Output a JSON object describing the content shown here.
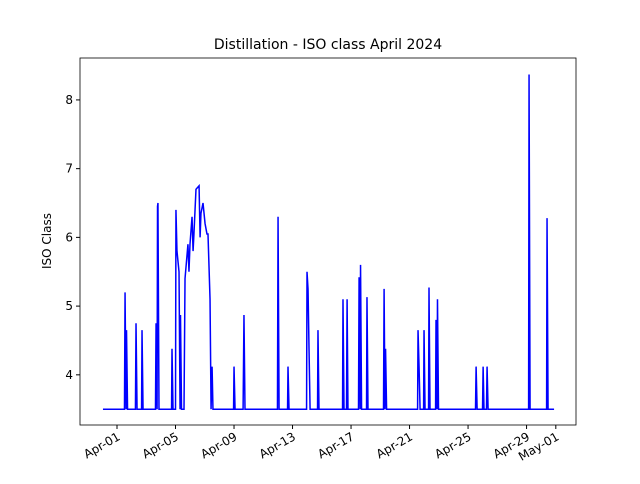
{
  "chart_data": {
    "type": "line",
    "title": "Distillation - ISO class April 2024",
    "y_label": "ISO Class",
    "x": [
      -0.96,
      0.51,
      0.55,
      0.62,
      0.65,
      0.72,
      1.26,
      1.3,
      1.37,
      1.68,
      1.71,
      1.78,
      2.63,
      2.67,
      2.74,
      2.77,
      2.8,
      2.87,
      3.73,
      3.76,
      3.83,
      4.0,
      4.03,
      4.1,
      4.24,
      4.31,
      4.34,
      4.41,
      4.58,
      4.65,
      4.85,
      4.92,
      4.99,
      5.13,
      5.2,
      5.26,
      5.4,
      5.61,
      5.68,
      5.74,
      5.88,
      6.02,
      6.15,
      6.22,
      6.36,
      6.43,
      6.5,
      6.56,
      7.97,
      8.0,
      8.07,
      8.62,
      8.68,
      8.75,
      10.97,
      11.01,
      11.08,
      11.66,
      11.69,
      11.76,
      12.96,
      12.99,
      13.06,
      13.13,
      13.2,
      13.71,
      13.74,
      13.81,
      15.42,
      15.45,
      15.52,
      15.69,
      15.73,
      15.79,
      16.51,
      16.55,
      16.62,
      16.65,
      16.72,
      17.06,
      17.09,
      17.16,
      18.22,
      18.26,
      18.32,
      18.36,
      18.43,
      20.55,
      20.58,
      20.65,
      20.72,
      20.96,
      20.99,
      21.06,
      21.3,
      21.33,
      21.4,
      21.78,
      21.81,
      21.88,
      21.91,
      21.98,
      24.51,
      24.55,
      24.62,
      24.99,
      25.03,
      25.09,
      25.26,
      25.3,
      25.37,
      28.14,
      28.17,
      28.24,
      29.37,
      29.4,
      29.47,
      29.88
    ],
    "series": [
      {
        "name": "ISO class",
        "color": "#0000ff",
        "values": [
          3.5,
          3.5,
          5.2,
          3.5,
          4.65,
          3.5,
          3.5,
          4.75,
          3.5,
          3.5,
          4.65,
          3.5,
          3.5,
          4.75,
          3.5,
          6.45,
          6.5,
          3.5,
          3.5,
          4.38,
          3.5,
          3.5,
          6.4,
          5.8,
          5.5,
          3.5,
          4.87,
          3.5,
          3.5,
          5.4,
          5.9,
          5.5,
          5.9,
          6.3,
          5.8,
          6.05,
          6.7,
          6.75,
          6.0,
          6.35,
          6.5,
          6.2,
          6.05,
          6.05,
          5.1,
          3.5,
          4.12,
          3.5,
          3.5,
          4.12,
          3.5,
          3.5,
          4.87,
          3.5,
          3.5,
          6.3,
          3.5,
          3.5,
          4.12,
          3.5,
          3.5,
          5.5,
          5.25,
          4.35,
          3.5,
          3.5,
          4.65,
          3.5,
          3.5,
          5.1,
          3.5,
          3.5,
          5.1,
          3.5,
          3.5,
          5.42,
          3.5,
          5.6,
          3.5,
          3.5,
          5.13,
          3.5,
          3.5,
          5.25,
          3.5,
          4.38,
          3.5,
          3.5,
          4.65,
          4.12,
          3.5,
          3.5,
          4.65,
          3.5,
          3.5,
          5.27,
          3.5,
          3.5,
          4.8,
          3.5,
          5.1,
          3.5,
          3.5,
          4.12,
          3.5,
          3.5,
          4.12,
          3.5,
          3.5,
          4.12,
          3.5,
          3.5,
          8.37,
          3.5,
          3.5,
          6.28,
          3.5,
          3.5
        ]
      }
    ],
    "xlim": [
      -2.53,
      31.38
    ],
    "xticks": [
      {
        "value": 0,
        "label": "Apr-01"
      },
      {
        "value": 4,
        "label": "Apr-05"
      },
      {
        "value": 8,
        "label": "Apr-09"
      },
      {
        "value": 12,
        "label": "Apr-13"
      },
      {
        "value": 16,
        "label": "Apr-17"
      },
      {
        "value": 20,
        "label": "Apr-21"
      },
      {
        "value": 24,
        "label": "Apr-25"
      },
      {
        "value": 28,
        "label": "Apr-29"
      },
      {
        "value": 30,
        "label": "May-01"
      }
    ],
    "ylim": [
      3.27,
      8.61
    ],
    "yticks": [
      4,
      5,
      6,
      7,
      8
    ],
    "grid": false
  }
}
